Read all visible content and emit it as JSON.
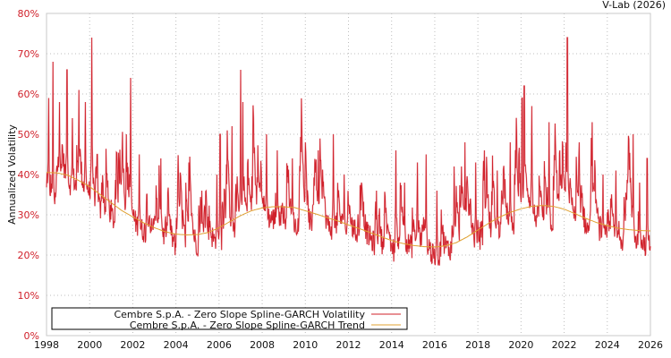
{
  "credit": "V-Lab (2026)",
  "chart_data": {
    "type": "line",
    "title": "",
    "xlabel": "",
    "ylabel": "Annualized Volatility",
    "xlim": [
      1998,
      2026
    ],
    "ylim": [
      0,
      80
    ],
    "x_ticks": [
      "1998",
      "2000",
      "2002",
      "2004",
      "2006",
      "2008",
      "2010",
      "2012",
      "2014",
      "2016",
      "2018",
      "2020",
      "2022",
      "2024",
      "2026"
    ],
    "y_ticks": [
      "0%",
      "10%",
      "20%",
      "30%",
      "40%",
      "50%",
      "60%",
      "70%",
      "80%"
    ],
    "grid": true,
    "legend_position": "lower-left",
    "series": [
      {
        "name": "Cembre S.p.A. - Zero Slope Spline-GARCH Volatility",
        "color": "#d0202a",
        "baseline": [
          [
            1998.0,
            38
          ],
          [
            1998.3,
            29
          ],
          [
            1998.6,
            40
          ],
          [
            1999.0,
            38
          ],
          [
            1999.5,
            36
          ],
          [
            2000.0,
            35
          ],
          [
            2000.5,
            30
          ],
          [
            2001.0,
            28
          ],
          [
            2001.5,
            27
          ],
          [
            2002.0,
            28
          ],
          [
            2002.5,
            26
          ],
          [
            2003.0,
            25
          ],
          [
            2003.5,
            23
          ],
          [
            2004.0,
            22
          ],
          [
            2004.5,
            21
          ],
          [
            2005.0,
            22
          ],
          [
            2005.5,
            23
          ],
          [
            2006.0,
            23
          ],
          [
            2006.5,
            24
          ],
          [
            2007.0,
            27
          ],
          [
            2007.5,
            30
          ],
          [
            2008.0,
            29
          ],
          [
            2008.5,
            29
          ],
          [
            2009.0,
            28
          ],
          [
            2009.5,
            27
          ],
          [
            2010.0,
            26
          ],
          [
            2010.5,
            26
          ],
          [
            2011.0,
            26
          ],
          [
            2011.5,
            27
          ],
          [
            2012.0,
            26
          ],
          [
            2012.5,
            25
          ],
          [
            2013.0,
            24
          ],
          [
            2013.5,
            21
          ],
          [
            2014.0,
            20
          ],
          [
            2014.5,
            22
          ],
          [
            2015.0,
            22
          ],
          [
            2015.5,
            21
          ],
          [
            2016.0,
            19
          ],
          [
            2016.5,
            21
          ],
          [
            2017.0,
            22
          ],
          [
            2017.5,
            23
          ],
          [
            2018.0,
            23
          ],
          [
            2018.5,
            24
          ],
          [
            2019.0,
            25
          ],
          [
            2019.5,
            26
          ],
          [
            2020.0,
            27
          ],
          [
            2020.3,
            34
          ],
          [
            2020.6,
            30
          ],
          [
            2021.0,
            28
          ],
          [
            2021.5,
            27
          ],
          [
            2022.0,
            30
          ],
          [
            2022.5,
            28
          ],
          [
            2023.0,
            26
          ],
          [
            2023.5,
            25
          ],
          [
            2024.0,
            24
          ],
          [
            2024.5,
            24
          ],
          [
            2025.0,
            23
          ],
          [
            2025.5,
            23
          ],
          [
            2026.0,
            22
          ]
        ],
        "spikes": [
          [
            1998.1,
            59
          ],
          [
            1998.3,
            68
          ],
          [
            1998.6,
            58
          ],
          [
            1998.95,
            66
          ],
          [
            1999.2,
            54
          ],
          [
            1999.5,
            61
          ],
          [
            1999.8,
            58
          ],
          [
            2000.1,
            74
          ],
          [
            2000.35,
            45
          ],
          [
            2001.7,
            50
          ],
          [
            2001.9,
            64
          ],
          [
            2002.3,
            45
          ],
          [
            2003.3,
            44
          ],
          [
            2004.1,
            39
          ],
          [
            2004.6,
            43
          ],
          [
            2005.2,
            36
          ],
          [
            2005.9,
            40
          ],
          [
            2006.05,
            50
          ],
          [
            2006.6,
            52
          ],
          [
            2007.0,
            66
          ],
          [
            2007.1,
            58
          ],
          [
            2007.6,
            47
          ],
          [
            2008.2,
            50
          ],
          [
            2008.7,
            46
          ],
          [
            2009.4,
            44
          ],
          [
            2010.0,
            48
          ],
          [
            2010.6,
            46
          ],
          [
            2011.3,
            50
          ],
          [
            2011.8,
            40
          ],
          [
            2012.6,
            38
          ],
          [
            2013.3,
            36
          ],
          [
            2014.2,
            46
          ],
          [
            2014.6,
            38
          ],
          [
            2015.2,
            43
          ],
          [
            2015.6,
            45
          ],
          [
            2016.1,
            36
          ],
          [
            2016.9,
            42
          ],
          [
            2017.4,
            48
          ],
          [
            2017.9,
            43
          ],
          [
            2018.3,
            46
          ],
          [
            2018.9,
            41
          ],
          [
            2019.5,
            48
          ],
          [
            2020.05,
            59
          ],
          [
            2020.15,
            62
          ],
          [
            2020.5,
            57
          ],
          [
            2021.3,
            53
          ],
          [
            2021.8,
            46
          ],
          [
            2022.15,
            74
          ],
          [
            2022.7,
            48
          ],
          [
            2023.3,
            53
          ],
          [
            2023.8,
            40
          ],
          [
            2024.4,
            41
          ],
          [
            2025.2,
            50
          ],
          [
            2025.5,
            38
          ],
          [
            2025.85,
            44
          ]
        ]
      },
      {
        "name": "Cembre S.p.A. - Zero Slope Spline-GARCH Trend",
        "color": "#e0a030",
        "knots": [
          [
            1998.0,
            40.5
          ],
          [
            1998.5,
            40.4
          ],
          [
            1999.0,
            39.8
          ],
          [
            1999.5,
            38.5
          ],
          [
            2000.0,
            37.0
          ],
          [
            2000.5,
            35.0
          ],
          [
            2001.0,
            33.0
          ],
          [
            2001.5,
            31.0
          ],
          [
            2002.0,
            29.5
          ],
          [
            2002.5,
            28.0
          ],
          [
            2003.0,
            26.8
          ],
          [
            2003.5,
            25.8
          ],
          [
            2004.0,
            25.2
          ],
          [
            2004.5,
            25.0
          ],
          [
            2005.0,
            25.1
          ],
          [
            2005.5,
            25.6
          ],
          [
            2006.0,
            26.8
          ],
          [
            2006.5,
            28.3
          ],
          [
            2007.0,
            29.8
          ],
          [
            2007.5,
            31.0
          ],
          [
            2008.0,
            31.7
          ],
          [
            2008.5,
            32.0
          ],
          [
            2009.0,
            32.0
          ],
          [
            2009.5,
            31.8
          ],
          [
            2010.0,
            31.0
          ],
          [
            2010.5,
            30.2
          ],
          [
            2011.0,
            29.3
          ],
          [
            2011.5,
            28.5
          ],
          [
            2012.0,
            27.5
          ],
          [
            2012.5,
            26.6
          ],
          [
            2013.0,
            25.6
          ],
          [
            2013.5,
            24.6
          ],
          [
            2014.0,
            23.6
          ],
          [
            2014.5,
            22.9
          ],
          [
            2015.0,
            22.4
          ],
          [
            2015.5,
            22.1
          ],
          [
            2016.0,
            22.0
          ],
          [
            2016.5,
            22.3
          ],
          [
            2017.0,
            23.1
          ],
          [
            2017.5,
            24.5
          ],
          [
            2018.0,
            26.2
          ],
          [
            2018.5,
            27.9
          ],
          [
            2019.0,
            29.4
          ],
          [
            2019.5,
            30.6
          ],
          [
            2020.0,
            31.5
          ],
          [
            2020.5,
            32.1
          ],
          [
            2021.0,
            32.3
          ],
          [
            2021.5,
            32.1
          ],
          [
            2022.0,
            31.4
          ],
          [
            2022.5,
            30.3
          ],
          [
            2023.0,
            29.1
          ],
          [
            2023.5,
            28.1
          ],
          [
            2024.0,
            27.3
          ],
          [
            2024.5,
            26.7
          ],
          [
            2025.0,
            26.3
          ],
          [
            2025.5,
            26.1
          ],
          [
            2026.0,
            26.0
          ]
        ]
      }
    ]
  },
  "legend": {
    "items": [
      {
        "label": "Cembre S.p.A. - Zero Slope Spline-GARCH Volatility",
        "color": "#d0202a"
      },
      {
        "label": "Cembre S.p.A. - Zero Slope Spline-GARCH Trend",
        "color": "#e0a030"
      }
    ]
  }
}
